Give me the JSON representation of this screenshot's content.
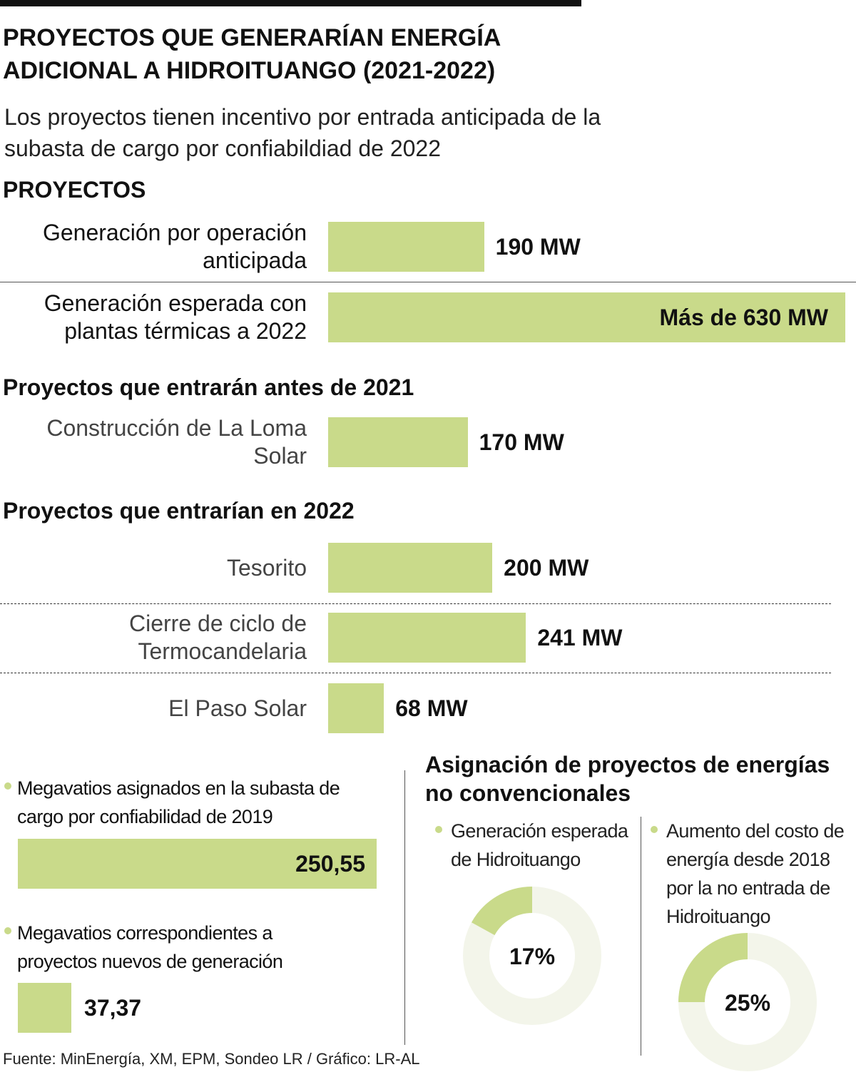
{
  "title": "PROYECTOS QUE GENERARÍAN ENERGÍA ADICIONAL A HIDROITUANGO (2021-2022)",
  "subtitle": "Los proyectos tienen incentivo por entrada anticipada de la subasta de cargo por confiabildiad de 2022",
  "source": "Fuente: MinEnergía, XM, EPM, Sondeo LR / Gráfico: LR-AL",
  "chart_data": [
    {
      "type": "bar",
      "title": "PROYECTOS",
      "color": "#c9da8a",
      "categories": [
        "Generación por operación anticipada",
        "Generación esperada con plantas térmicas a 2022"
      ],
      "values": [
        190,
        630
      ],
      "value_labels": [
        "190 MW",
        "Más de 630 MW"
      ]
    },
    {
      "type": "bar",
      "title": "Proyectos que entrarán antes de 2021",
      "color": "#c9da8a",
      "categories": [
        "Construcción de La Loma Solar"
      ],
      "values": [
        170
      ],
      "value_labels": [
        "170 MW"
      ]
    },
    {
      "type": "bar",
      "title": "Proyectos que entrarían en 2022",
      "color": "#c9da8a",
      "categories": [
        "Tesorito",
        "Cierre de ciclo de Termocandelaria",
        "El Paso Solar"
      ],
      "values": [
        200,
        241,
        68
      ],
      "value_labels": [
        "200 MW",
        "241 MW",
        "68 MW"
      ]
    },
    {
      "type": "bar",
      "color": "#c9da8a",
      "categories": [
        "Megavatios asignados en la subasta de cargo por confiabilidad de 2019",
        "Megavatios correspondientes a proyectos nuevos de generación"
      ],
      "values": [
        250.55,
        37.37
      ],
      "value_labels": [
        "250,55",
        "37,37"
      ]
    },
    {
      "type": "donut",
      "title": "Asignación de proyectos de energías no convencionales",
      "color": "#c9da8a",
      "track_color": "#f3f5ea",
      "categories": [
        "Generación esperada de Hidroituango",
        "Aumento del costo de energía desde 2018 por la no entrada de Hidroituango"
      ],
      "values": [
        17,
        25
      ],
      "value_labels": [
        "17%",
        "25%"
      ]
    }
  ]
}
